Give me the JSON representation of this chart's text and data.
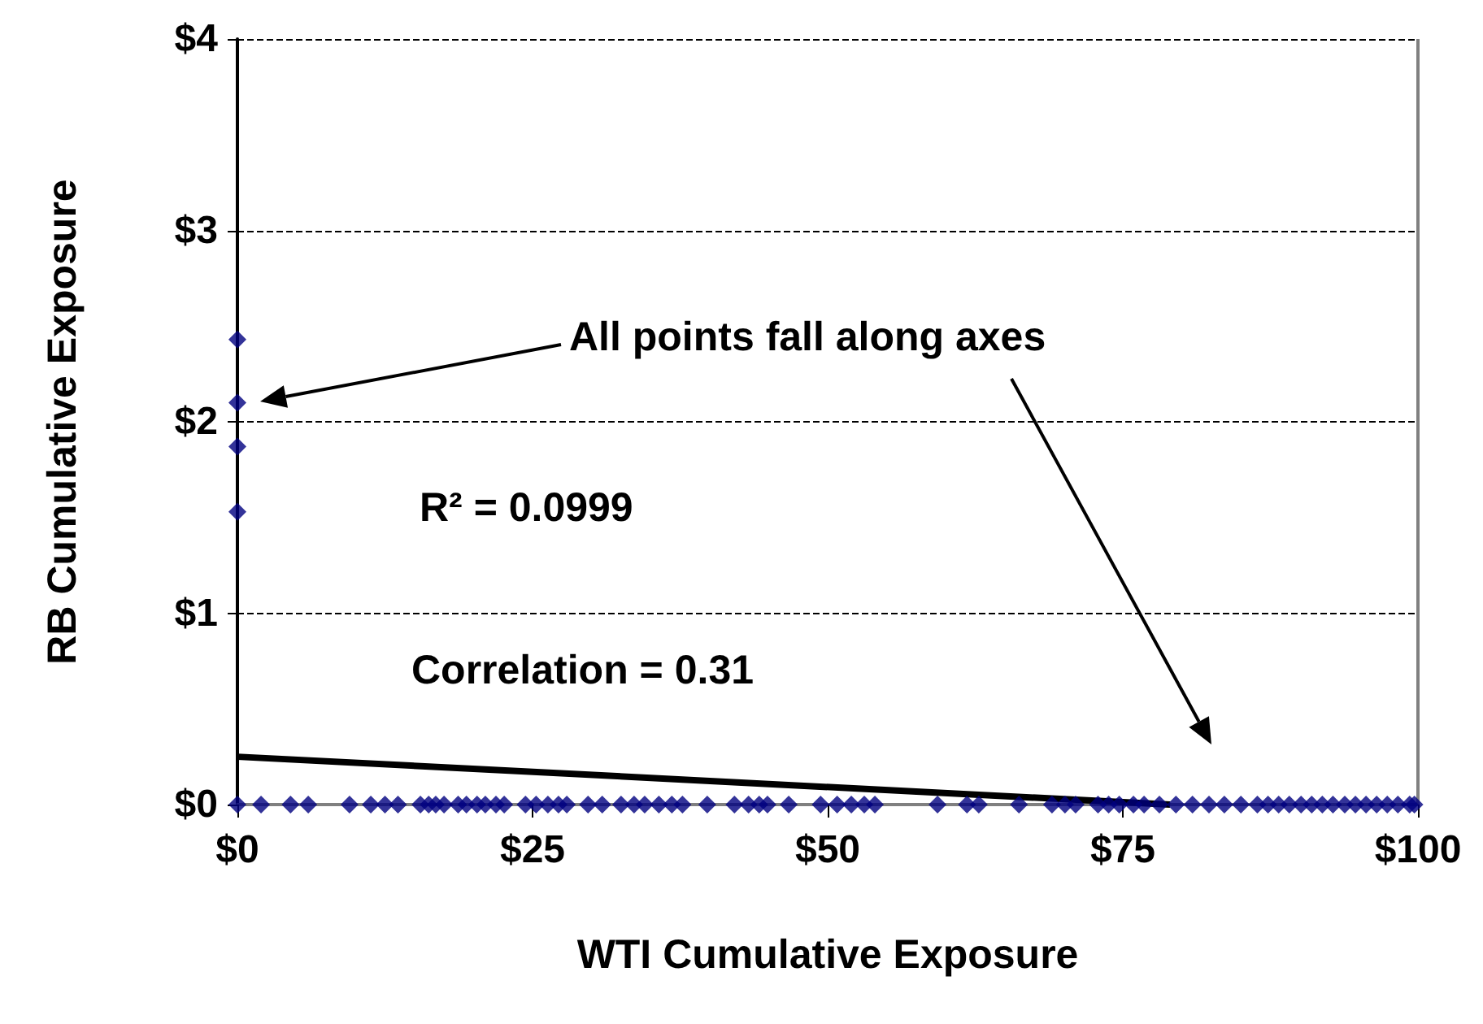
{
  "chart_data": {
    "type": "scatter",
    "xlabel": "WTI Cumulative Exposure",
    "ylabel": "RB Cumulative Exposure",
    "x": [
      0,
      0,
      0,
      0,
      0,
      2,
      4.5,
      6,
      9.5,
      11.3,
      12.5,
      13.6,
      15.5,
      16.2,
      16.8,
      17.5,
      18.7,
      19.4,
      20.3,
      21,
      21.9,
      22.6,
      24.4,
      25.3,
      26.3,
      27.2,
      27.9,
      29.7,
      30.9,
      32.5,
      33.6,
      34.5,
      35.7,
      36.8,
      37.7,
      39.8,
      42.1,
      43.3,
      44.2,
      44.9,
      46.7,
      49.4,
      50.8,
      52,
      53.1,
      54,
      59.3,
      61.8,
      62.8,
      66.2,
      69,
      70.1,
      71,
      72.9,
      73.8,
      74.7,
      75.9,
      76.8,
      78.1,
      79.5,
      80.9,
      82.3,
      83.6,
      85,
      86.4,
      87.3,
      88.2,
      89.1,
      90.1,
      91,
      91.9,
      92.8,
      93.8,
      94.7,
      95.6,
      96.5,
      97.4,
      98.3,
      99.3,
      99.7
    ],
    "series": [
      {
        "color": "#000080",
        "marker": "diamond",
        "values": [
          2.43,
          2.1,
          1.87,
          1.53,
          0,
          0,
          0,
          0,
          0,
          0,
          0,
          0,
          0,
          0,
          0,
          0,
          0,
          0,
          0,
          0,
          0,
          0,
          0,
          0,
          0,
          0,
          0,
          0,
          0,
          0,
          0,
          0,
          0,
          0,
          0,
          0,
          0,
          0,
          0,
          0,
          0,
          0,
          0,
          0,
          0,
          0,
          0,
          0,
          0,
          0,
          0,
          0,
          0,
          0,
          0,
          0,
          0,
          0,
          0,
          0,
          0,
          0,
          0,
          0,
          0,
          0,
          0,
          0,
          0,
          0,
          0,
          0,
          0,
          0,
          0,
          0,
          0,
          0,
          0,
          0
        ]
      },
      {
        "type": "line",
        "color": "#000000",
        "marker": "none",
        "x": [
          0,
          79
        ],
        "values": [
          0.25,
          0
        ]
      }
    ],
    "xlim": [
      0,
      100
    ],
    "xticks": [
      {
        "value": 0,
        "label": "$0"
      },
      {
        "value": 25,
        "label": "$25"
      },
      {
        "value": 50,
        "label": "$50"
      },
      {
        "value": 75,
        "label": "$75"
      },
      {
        "value": 100,
        "label": "$100"
      }
    ],
    "ylim": [
      0,
      4
    ],
    "yticks": [
      {
        "value": 0,
        "label": "$0"
      },
      {
        "value": 1,
        "label": "$1"
      },
      {
        "value": 2,
        "label": "$2"
      },
      {
        "value": 3,
        "label": "$3"
      },
      {
        "value": 4,
        "label": "$4"
      }
    ],
    "grid": "y",
    "annotations": [
      "All points fall along axes",
      "R² = 0.0999",
      "Correlation = 0.31"
    ]
  }
}
